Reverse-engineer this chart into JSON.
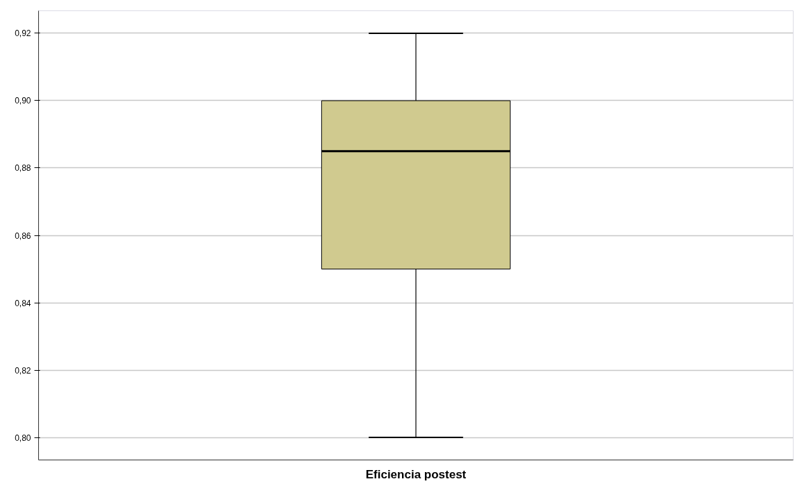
{
  "chart_data": {
    "type": "box",
    "categories": [
      "Eficiencia postest"
    ],
    "boxes": [
      {
        "low": 0.8,
        "q1": 0.85,
        "median": 0.885,
        "q3": 0.9,
        "high": 0.92
      }
    ],
    "color": "#d0ca8f",
    "ylim": [
      0.7933,
      0.9267
    ],
    "yticks": [
      {
        "value": 0.8,
        "label": "0,80"
      },
      {
        "value": 0.82,
        "label": "0,82"
      },
      {
        "value": 0.84,
        "label": "0,84"
      },
      {
        "value": 0.86,
        "label": "0,86"
      },
      {
        "value": 0.88,
        "label": "0,88"
      },
      {
        "value": 0.9,
        "label": "0,90"
      },
      {
        "value": 0.92,
        "label": "0,92"
      }
    ],
    "grid": "y"
  }
}
